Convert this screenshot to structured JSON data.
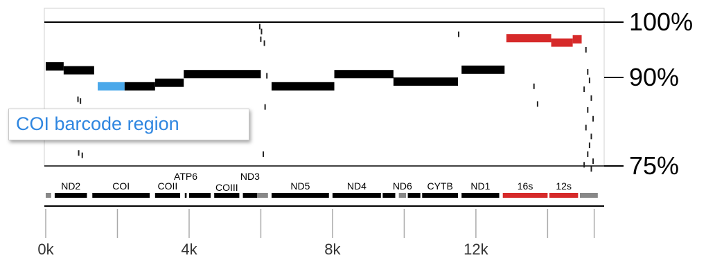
{
  "colors": {
    "axis": "#000000",
    "segment_default": "#000000",
    "highlight_barcode": "#4aa8ea",
    "rrna": "#d62a2a",
    "noncoding": "#888888",
    "tick": "#aaaaaa",
    "callout_text": "#2f86e0"
  },
  "annotation": {
    "label": "COI barcode region"
  },
  "chart_data": {
    "type": "line",
    "title": "",
    "xlabel": "",
    "ylabel": "",
    "xlim": [
      0,
      15500
    ],
    "ylim": [
      73,
      100
    ],
    "y_ticks": [
      {
        "value": 100,
        "label": "100%"
      },
      {
        "value": 90,
        "label": "90%"
      },
      {
        "value": 75,
        "label": "75%"
      }
    ],
    "x_ticks": [
      {
        "value": 0,
        "label": "0k"
      },
      {
        "value": 2000,
        "label": ""
      },
      {
        "value": 4000,
        "label": "4k"
      },
      {
        "value": 6000,
        "label": ""
      },
      {
        "value": 8000,
        "label": "8k"
      },
      {
        "value": 10000,
        "label": ""
      },
      {
        "value": 12000,
        "label": "12k"
      },
      {
        "value": 14000,
        "label": ""
      },
      {
        "value": 15300,
        "label": ""
      }
    ],
    "series": [
      {
        "segments": [
          {
            "x0": 0,
            "x1": 500,
            "y": 92.0,
            "color": "segment_default"
          },
          {
            "x0": 500,
            "x1": 1350,
            "y": 91.3,
            "color": "segment_default"
          },
          {
            "x0": 1450,
            "x1": 2200,
            "y": 88.5,
            "color": "highlight_barcode"
          },
          {
            "x0": 2200,
            "x1": 3050,
            "y": 88.5,
            "color": "segment_default"
          },
          {
            "x0": 3050,
            "x1": 3850,
            "y": 89.1,
            "color": "segment_default"
          },
          {
            "x0": 3850,
            "x1": 6000,
            "y": 90.6,
            "color": "segment_default"
          },
          {
            "x0": 6300,
            "x1": 8050,
            "y": 88.5,
            "color": "segment_default"
          },
          {
            "x0": 8050,
            "x1": 9700,
            "y": 90.6,
            "color": "segment_default"
          },
          {
            "x0": 9700,
            "x1": 11500,
            "y": 89.3,
            "color": "segment_default"
          },
          {
            "x0": 11600,
            "x1": 12800,
            "y": 91.4,
            "color": "segment_default"
          },
          {
            "x0": 12850,
            "x1": 14100,
            "y": 97.1,
            "color": "rrna"
          },
          {
            "x0": 14100,
            "x1": 14700,
            "y": 96.3,
            "color": "rrna"
          },
          {
            "x0": 14700,
            "x1": 14950,
            "y": 96.9,
            "color": "rrna"
          }
        ]
      }
    ],
    "scatter_marks": [
      {
        "x": 5950,
        "y": 99.2
      },
      {
        "x": 6000,
        "y": 98.3
      },
      {
        "x": 5980,
        "y": 96.9
      },
      {
        "x": 6080,
        "y": 96.2
      },
      {
        "x": 11500,
        "y": 97.8
      },
      {
        "x": 6150,
        "y": 90.3
      },
      {
        "x": 6100,
        "y": 85.0
      },
      {
        "x": 6050,
        "y": 77.0
      },
      {
        "x": 880,
        "y": 86.3
      },
      {
        "x": 950,
        "y": 86.0
      },
      {
        "x": 900,
        "y": 77.2
      },
      {
        "x": 1000,
        "y": 76.8
      },
      {
        "x": 13600,
        "y": 88.5
      },
      {
        "x": 13700,
        "y": 85.5
      },
      {
        "x": 15050,
        "y": 95.0
      },
      {
        "x": 15100,
        "y": 91.0
      },
      {
        "x": 15150,
        "y": 89.5
      },
      {
        "x": 15000,
        "y": 88.0
      },
      {
        "x": 15200,
        "y": 86.5
      },
      {
        "x": 15100,
        "y": 84.5
      },
      {
        "x": 15250,
        "y": 83.0
      },
      {
        "x": 15050,
        "y": 81.5
      },
      {
        "x": 15200,
        "y": 80.0
      },
      {
        "x": 15150,
        "y": 78.5
      },
      {
        "x": 15100,
        "y": 77.0
      },
      {
        "x": 15250,
        "y": 75.8
      },
      {
        "x": 15000,
        "y": 75.2
      },
      {
        "x": 15200,
        "y": 74.5
      }
    ],
    "genes": [
      {
        "x0": 0,
        "x1": 150,
        "label": "",
        "color": "noncoding"
      },
      {
        "x0": 250,
        "x1": 1150,
        "label": "ND2",
        "color": "segment_default"
      },
      {
        "x0": 1300,
        "x1": 2900,
        "label": "COI",
        "color": "segment_default"
      },
      {
        "x0": 3050,
        "x1": 3750,
        "label": "COII",
        "color": "segment_default"
      },
      {
        "x0": 3880,
        "x1": 3930,
        "label": "ATP6",
        "color": "segment_default"
      },
      {
        "x0": 4000,
        "x1": 4600,
        "label": "",
        "color": "segment_default"
      },
      {
        "x0": 4700,
        "x1": 5400,
        "label": "COIII",
        "color": "segment_default"
      },
      {
        "x0": 5500,
        "x1": 5900,
        "label": "ND3",
        "color": "segment_default"
      },
      {
        "x0": 5900,
        "x1": 6200,
        "label": "",
        "color": "noncoding"
      },
      {
        "x0": 6300,
        "x1": 7900,
        "label": "ND5",
        "color": "segment_default"
      },
      {
        "x0": 8000,
        "x1": 9350,
        "label": "ND4",
        "color": "segment_default"
      },
      {
        "x0": 9400,
        "x1": 9750,
        "label": "",
        "color": "segment_default"
      },
      {
        "x0": 9850,
        "x1": 10050,
        "label": "ND6",
        "color": "noncoding"
      },
      {
        "x0": 10100,
        "x1": 10450,
        "label": "",
        "color": "segment_default"
      },
      {
        "x0": 10500,
        "x1": 11500,
        "label": "CYTB",
        "color": "segment_default"
      },
      {
        "x0": 11600,
        "x1": 12650,
        "label": "ND1",
        "color": "segment_default"
      },
      {
        "x0": 12750,
        "x1": 14000,
        "label": "16s",
        "color": "rrna"
      },
      {
        "x0": 14050,
        "x1": 14850,
        "label": "12s",
        "color": "rrna"
      },
      {
        "x0": 14900,
        "x1": 15400,
        "label": "",
        "color": "noncoding"
      }
    ],
    "grid": false,
    "legend": "none"
  }
}
